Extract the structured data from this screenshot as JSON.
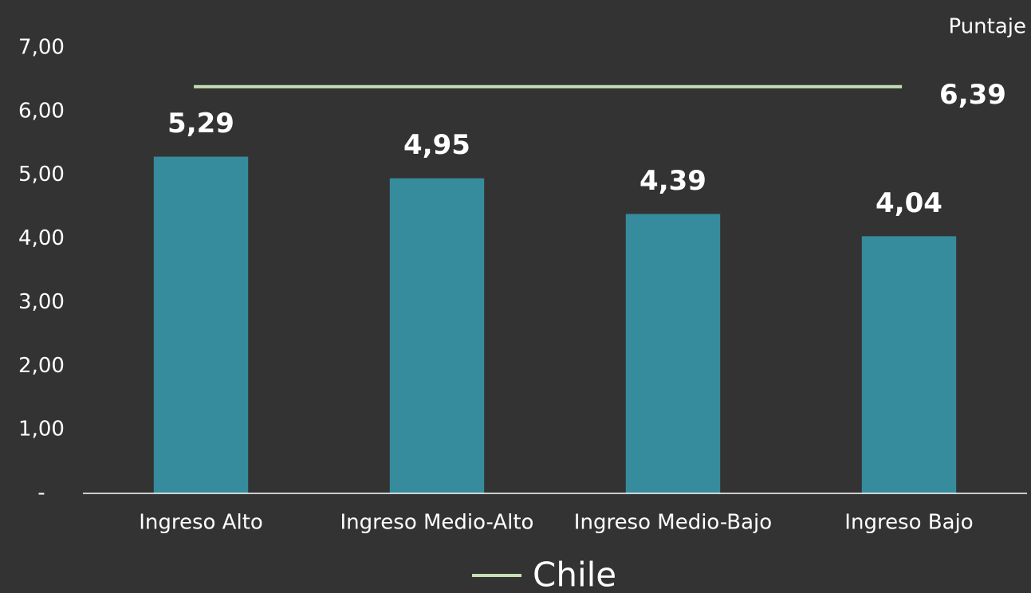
{
  "chart_data": {
    "type": "bar",
    "y_axis_label": "Puntaje",
    "categories": [
      "Ingreso Alto",
      "Ingreso Medio-Alto",
      "Ingreso Medio-Bajo",
      "Ingreso Bajo"
    ],
    "values": [
      5.29,
      4.95,
      4.39,
      4.04
    ],
    "value_labels": [
      "5,29",
      "4,95",
      "4,39",
      "4,04"
    ],
    "color": "#368c9c",
    "ylim": [
      0,
      7
    ],
    "yticks": [
      {
        "value": 0,
        "label": "-"
      },
      {
        "value": 1,
        "label": "1,00"
      },
      {
        "value": 2,
        "label": "2,00"
      },
      {
        "value": 3,
        "label": "3,00"
      },
      {
        "value": 4,
        "label": "4,00"
      },
      {
        "value": 5,
        "label": "5,00"
      },
      {
        "value": 6,
        "label": "6,00"
      },
      {
        "value": 7,
        "label": "7,00"
      }
    ],
    "reference_line": {
      "name": "Chile",
      "value": 6.39,
      "value_label": "6,39",
      "color": "#c5dfb4"
    },
    "grid": false
  }
}
